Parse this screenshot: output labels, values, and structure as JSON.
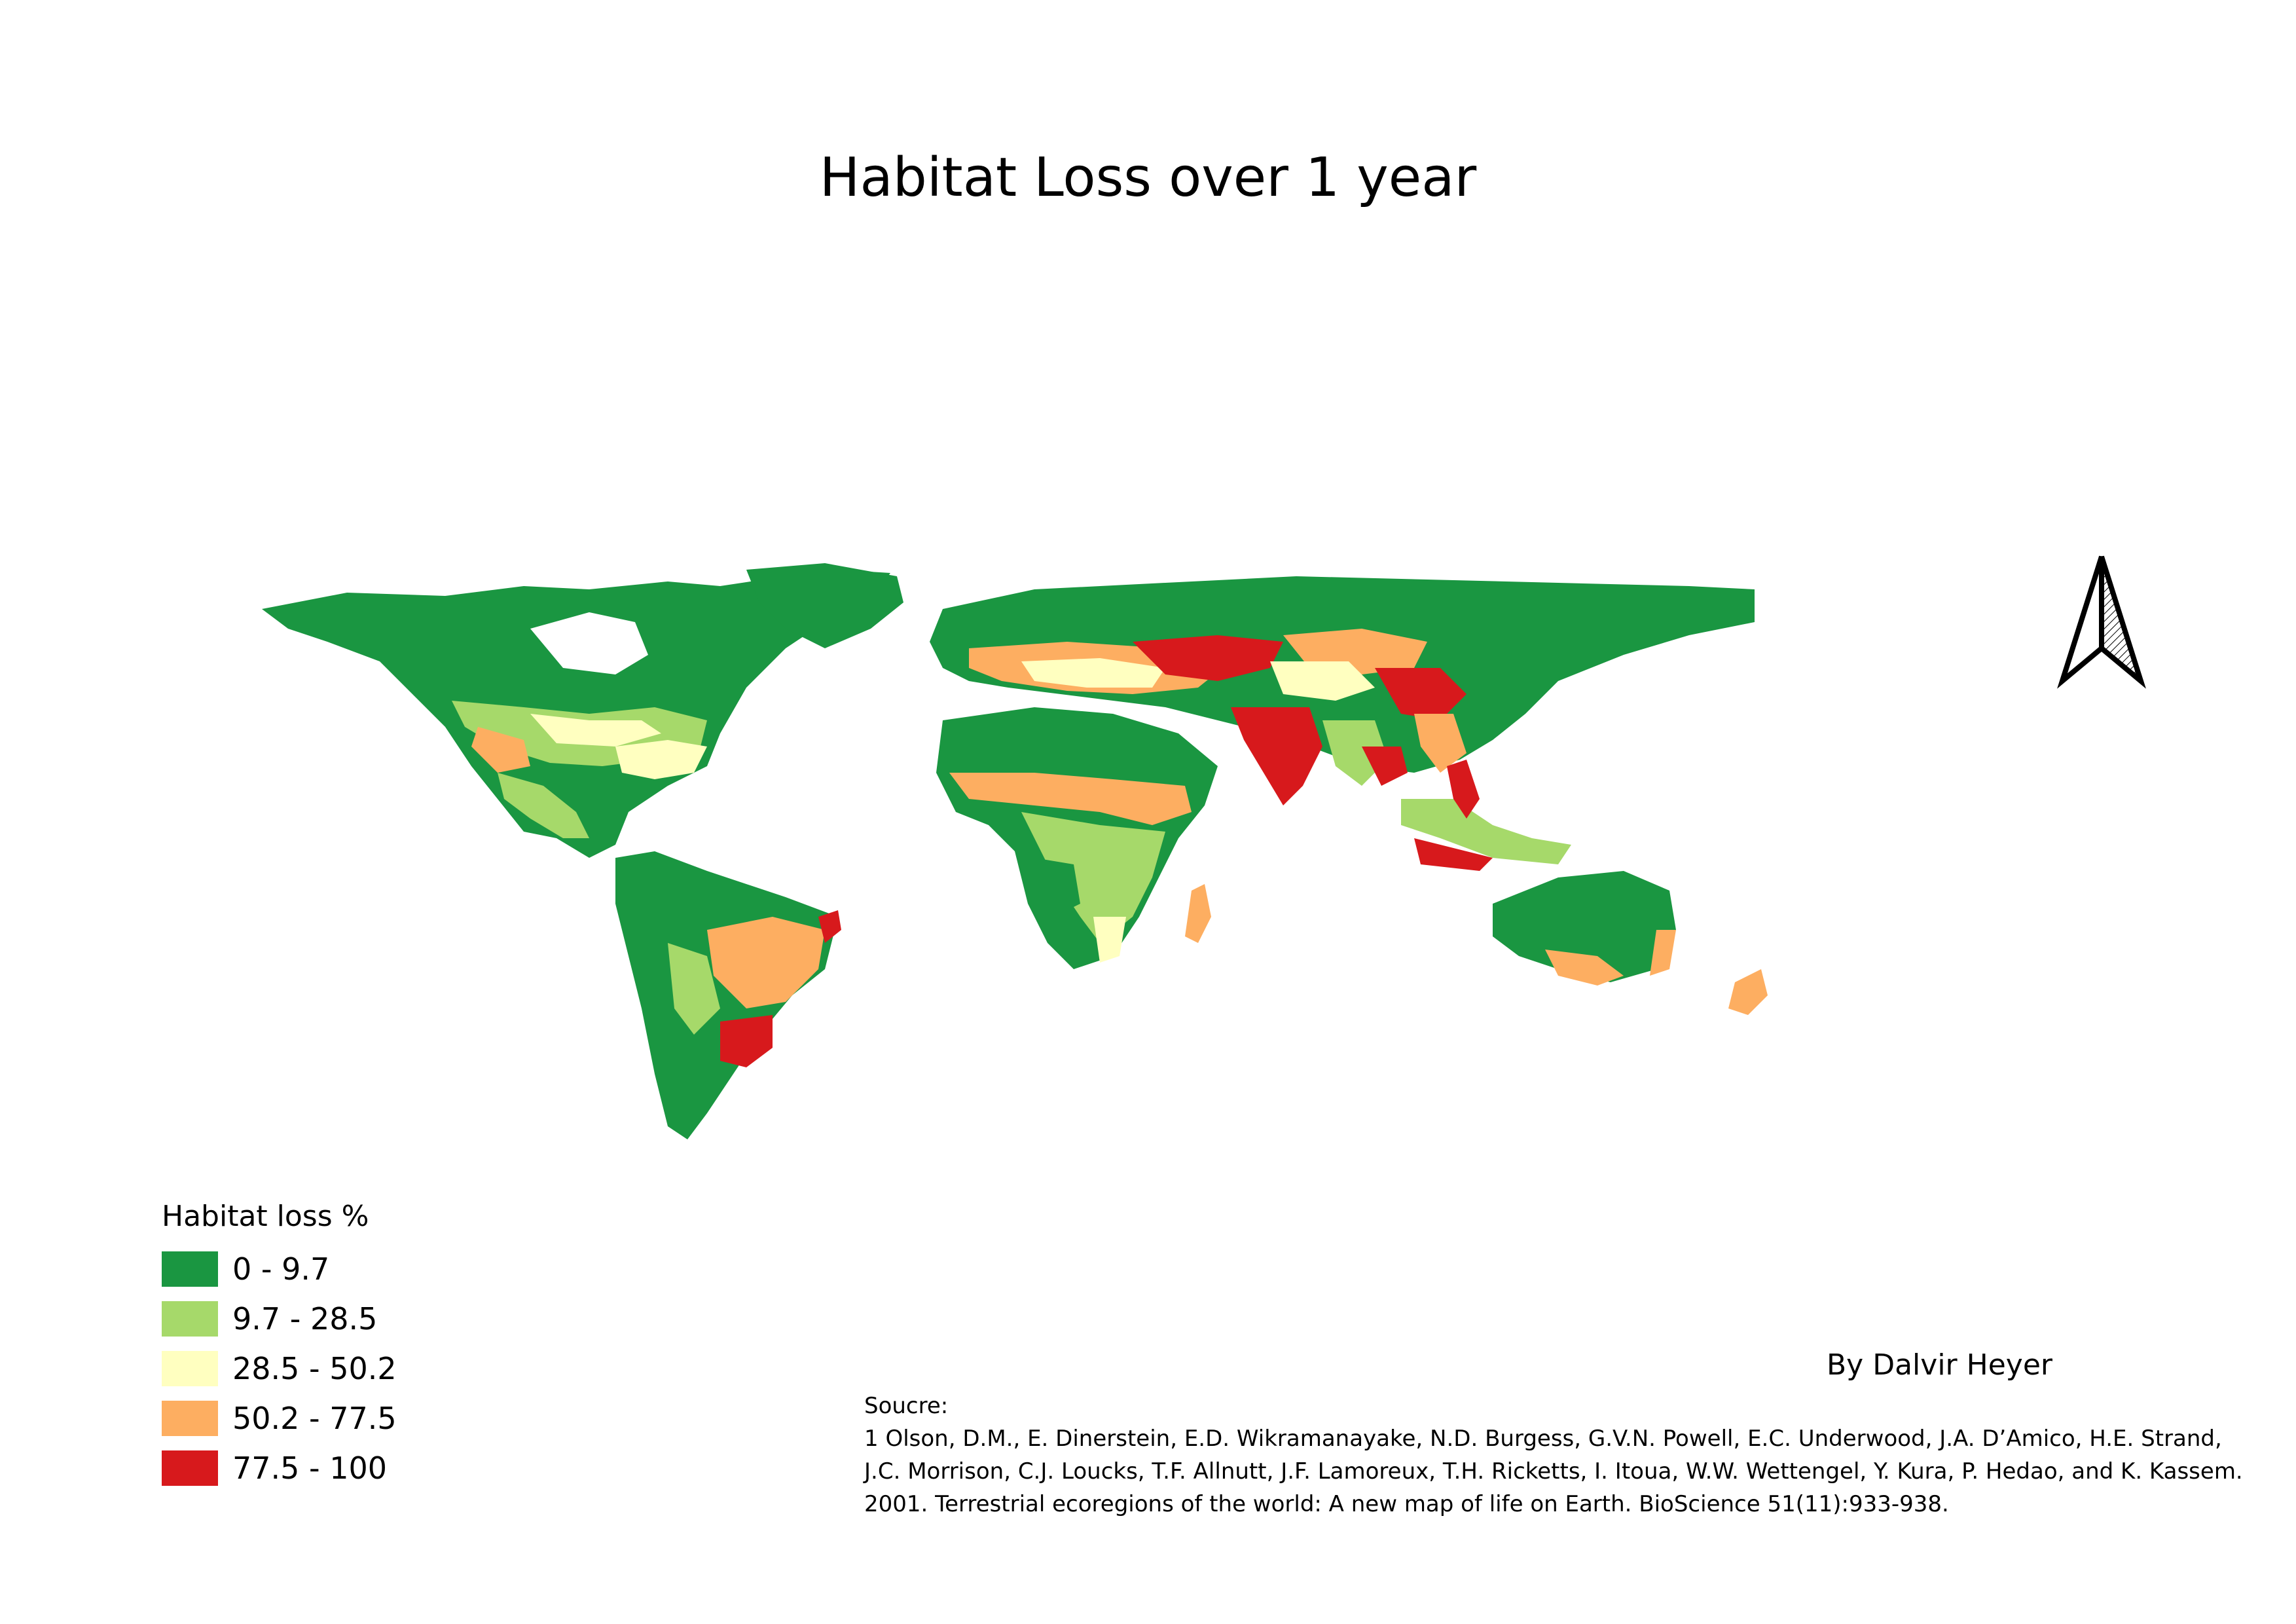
{
  "title": "Habitat Loss over 1 year",
  "legend": {
    "title": "Habitat loss %",
    "classes": [
      {
        "label": "0 - 9.7",
        "color": "#1a9641"
      },
      {
        "label": "9.7 - 28.5",
        "color": "#a6d96a"
      },
      {
        "label": "28.5 - 50.2",
        "color": "#ffffc0"
      },
      {
        "label": "50.2 - 77.5",
        "color": "#fdae61"
      },
      {
        "label": "77.5 - 100",
        "color": "#d7191c"
      }
    ]
  },
  "author": "By Dalvir Heyer",
  "source": {
    "heading": "Soucre:",
    "text": "1 Olson, D.M., E. Dinerstein, E.D. Wikramanayake, N.D. Burgess, G.V.N. Powell, E.C. Underwood, J.A. D’Amico, H.E. Strand, J.C. Morrison, C.J. Loucks, T.F. Allnutt, J.F. Lamoreux, T.H. Ricketts, I. Itoua, W.W. Wettengel, Y. Kura, P. Hedao, and K. Kassem. 2001. Terrestrial ecoregions of the world: A new map of life on Earth. BioScience 51(11):933-938."
  },
  "north_arrow_icon": "north-arrow-icon"
}
